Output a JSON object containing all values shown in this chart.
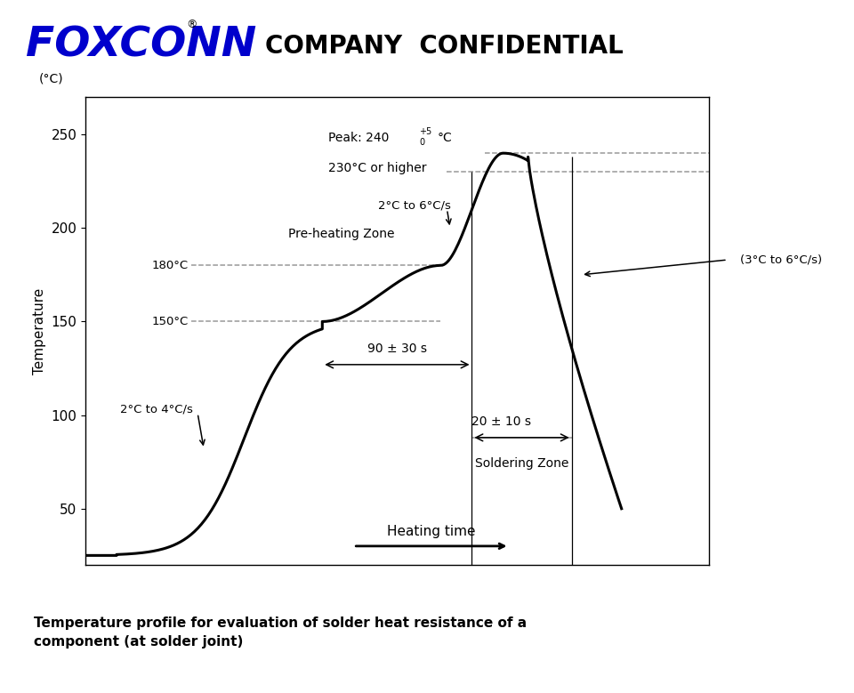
{
  "title": "COMPANY  CONFIDENTIAL",
  "ylabel": "Temperature",
  "ytick_label": "(°C)",
  "xlabel_arrow": "Heating time",
  "yticks": [
    50,
    100,
    150,
    200,
    250
  ],
  "ylim": [
    20,
    270
  ],
  "xlim": [
    0,
    100
  ],
  "annotations": {
    "rate_initial": "2°C to 4°C/s",
    "pre_heating_zone": "Pre-heating Zone",
    "rate_peak": "2°C to 6°C/s",
    "temp_230_label": "230°C or higher",
    "temp_180_label": "180°C",
    "temp_150_label": "150°C",
    "bracket_90s": "90 ± 30 s",
    "bracket_20s": "20 ± 10 s",
    "soldering_zone": "Soldering Zone",
    "cooling_rate": "(3°C to 6°C/s)"
  },
  "caption": "Temperature profile for evaluation of solder heat resistance of a\ncomponent (at solder joint)",
  "curve_color": "black",
  "dashed_color": "#999999",
  "background_color": "#ffffff",
  "foxconn_color": "#0000cc"
}
